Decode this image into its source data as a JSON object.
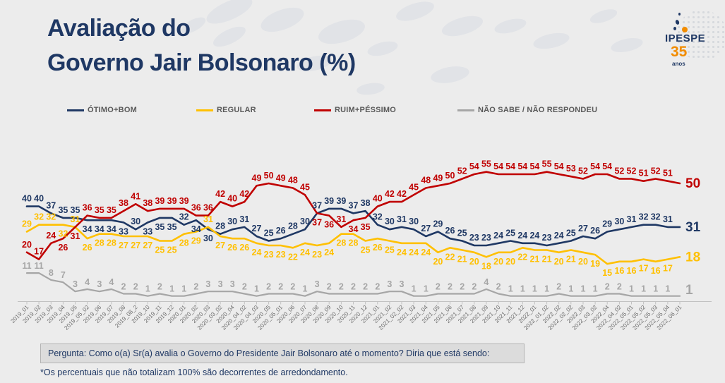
{
  "title": {
    "line1": "Avaliação do",
    "line2": "Governo Jair Bolsonaro (%)"
  },
  "logo": {
    "name": "IPESPE",
    "anniversary": "35",
    "anniversary_label": "anos"
  },
  "colors": {
    "title": "#1f3864",
    "background": "#ececec",
    "accent_orange": "#f28c00"
  },
  "legend": [
    {
      "label": "ÓTIMO+BOM",
      "color": "#1f3864"
    },
    {
      "label": "REGULAR",
      "color": "#ffc000"
    },
    {
      "label": "RUIM+PÉSSIMO",
      "color": "#c00000"
    },
    {
      "label": "NÃO SABE / NÃO RESPONDEU",
      "color": "#a6a6a6"
    }
  ],
  "chart_data": {
    "type": "line",
    "title": "Avaliação do Governo Jair Bolsonaro (%)",
    "xlabel": "",
    "ylabel": "",
    "ylim": [
      0,
      60
    ],
    "grid": false,
    "legend_position": "top",
    "data_labels": true,
    "x": [
      "2019_01",
      "2019_02",
      "2019_03",
      "2019_04",
      "2019_05",
      "2019_05_02",
      "2019_06",
      "2019_07",
      "2019_08",
      "2019_08_2",
      "2019_10",
      "2019_11",
      "2019_12",
      "2020_01",
      "2020_02",
      "2020_03",
      "2020_03_02",
      "2020_04",
      "2020_04_02",
      "2020_04_03",
      "2020_05",
      "2020_05_01",
      "2020_06",
      "2020_07",
      "2020_08",
      "2020_09",
      "2020_10",
      "2020_11",
      "2020_12",
      "2021_01",
      "2021_02",
      "2021_02_02",
      "2021_03",
      "2021_04",
      "2021_05",
      "2021_06",
      "2021_07",
      "2021_08",
      "2021_09",
      "2021_10",
      "2021_11",
      "2021_12",
      "2022_01",
      "2022_01_02",
      "2022_02",
      "2022_02_02",
      "2022_03",
      "2022_03_02",
      "2022_04",
      "2022_04_02",
      "2022_05_01",
      "2022_05_02",
      "2022_05_03",
      "2022_05_04",
      "2022_06_01"
    ],
    "series": [
      {
        "name": "ÓTIMO+BOM",
        "color": "#1f3864",
        "values": [
          40,
          40,
          37,
          35,
          35,
          34,
          34,
          34,
          33,
          30,
          33,
          35,
          35,
          32,
          34,
          30,
          28,
          30,
          31,
          27,
          25,
          26,
          28,
          30,
          37,
          39,
          39,
          37,
          38,
          32,
          30,
          31,
          30,
          27,
          29,
          26,
          25,
          23,
          23,
          24,
          25,
          24,
          24,
          23,
          24,
          25,
          27,
          26,
          29,
          30,
          31,
          32,
          32,
          31,
          31
        ]
      },
      {
        "name": "REGULAR",
        "color": "#ffc000",
        "values": [
          29,
          32,
          32,
          32,
          31,
          26,
          28,
          28,
          27,
          27,
          27,
          25,
          25,
          28,
          29,
          31,
          27,
          26,
          26,
          24,
          23,
          23,
          22,
          24,
          23,
          24,
          28,
          28,
          25,
          26,
          25,
          24,
          24,
          24,
          20,
          22,
          21,
          20,
          18,
          20,
          20,
          22,
          21,
          21,
          20,
          21,
          20,
          19,
          15,
          16,
          16,
          17,
          16,
          17,
          18
        ]
      },
      {
        "name": "RUIM+PÉSSIMO",
        "color": "#c00000",
        "values": [
          20,
          17,
          24,
          26,
          31,
          36,
          35,
          35,
          38,
          41,
          38,
          39,
          39,
          39,
          36,
          36,
          42,
          40,
          42,
          49,
          50,
          49,
          48,
          45,
          37,
          36,
          31,
          34,
          35,
          40,
          42,
          42,
          45,
          48,
          49,
          50,
          52,
          54,
          55,
          54,
          54,
          54,
          54,
          55,
          54,
          53,
          52,
          54,
          54,
          52,
          52,
          51,
          52,
          51,
          50
        ]
      },
      {
        "name": "NÃO SABE / NÃO RESPONDEU",
        "color": "#a6a6a6",
        "values": [
          11,
          11,
          8,
          7,
          3,
          4,
          3,
          4,
          2,
          2,
          1,
          2,
          1,
          1,
          2,
          3,
          3,
          3,
          2,
          1,
          2,
          2,
          2,
          1,
          3,
          2,
          2,
          2,
          2,
          2,
          3,
          3,
          1,
          1,
          2,
          2,
          2,
          2,
          4,
          2,
          1,
          1,
          1,
          1,
          2,
          1,
          1,
          1,
          2,
          2,
          1,
          1,
          1,
          1,
          1
        ]
      }
    ]
  },
  "footer": {
    "question": "Pergunta: Como o(a) Sr(a) avalia o Governo do Presidente Jair Bolsonaro até o momento? Diria que está sendo:",
    "note": "*Os percentuais que não totalizam 100% são decorrentes de arredondamento."
  }
}
